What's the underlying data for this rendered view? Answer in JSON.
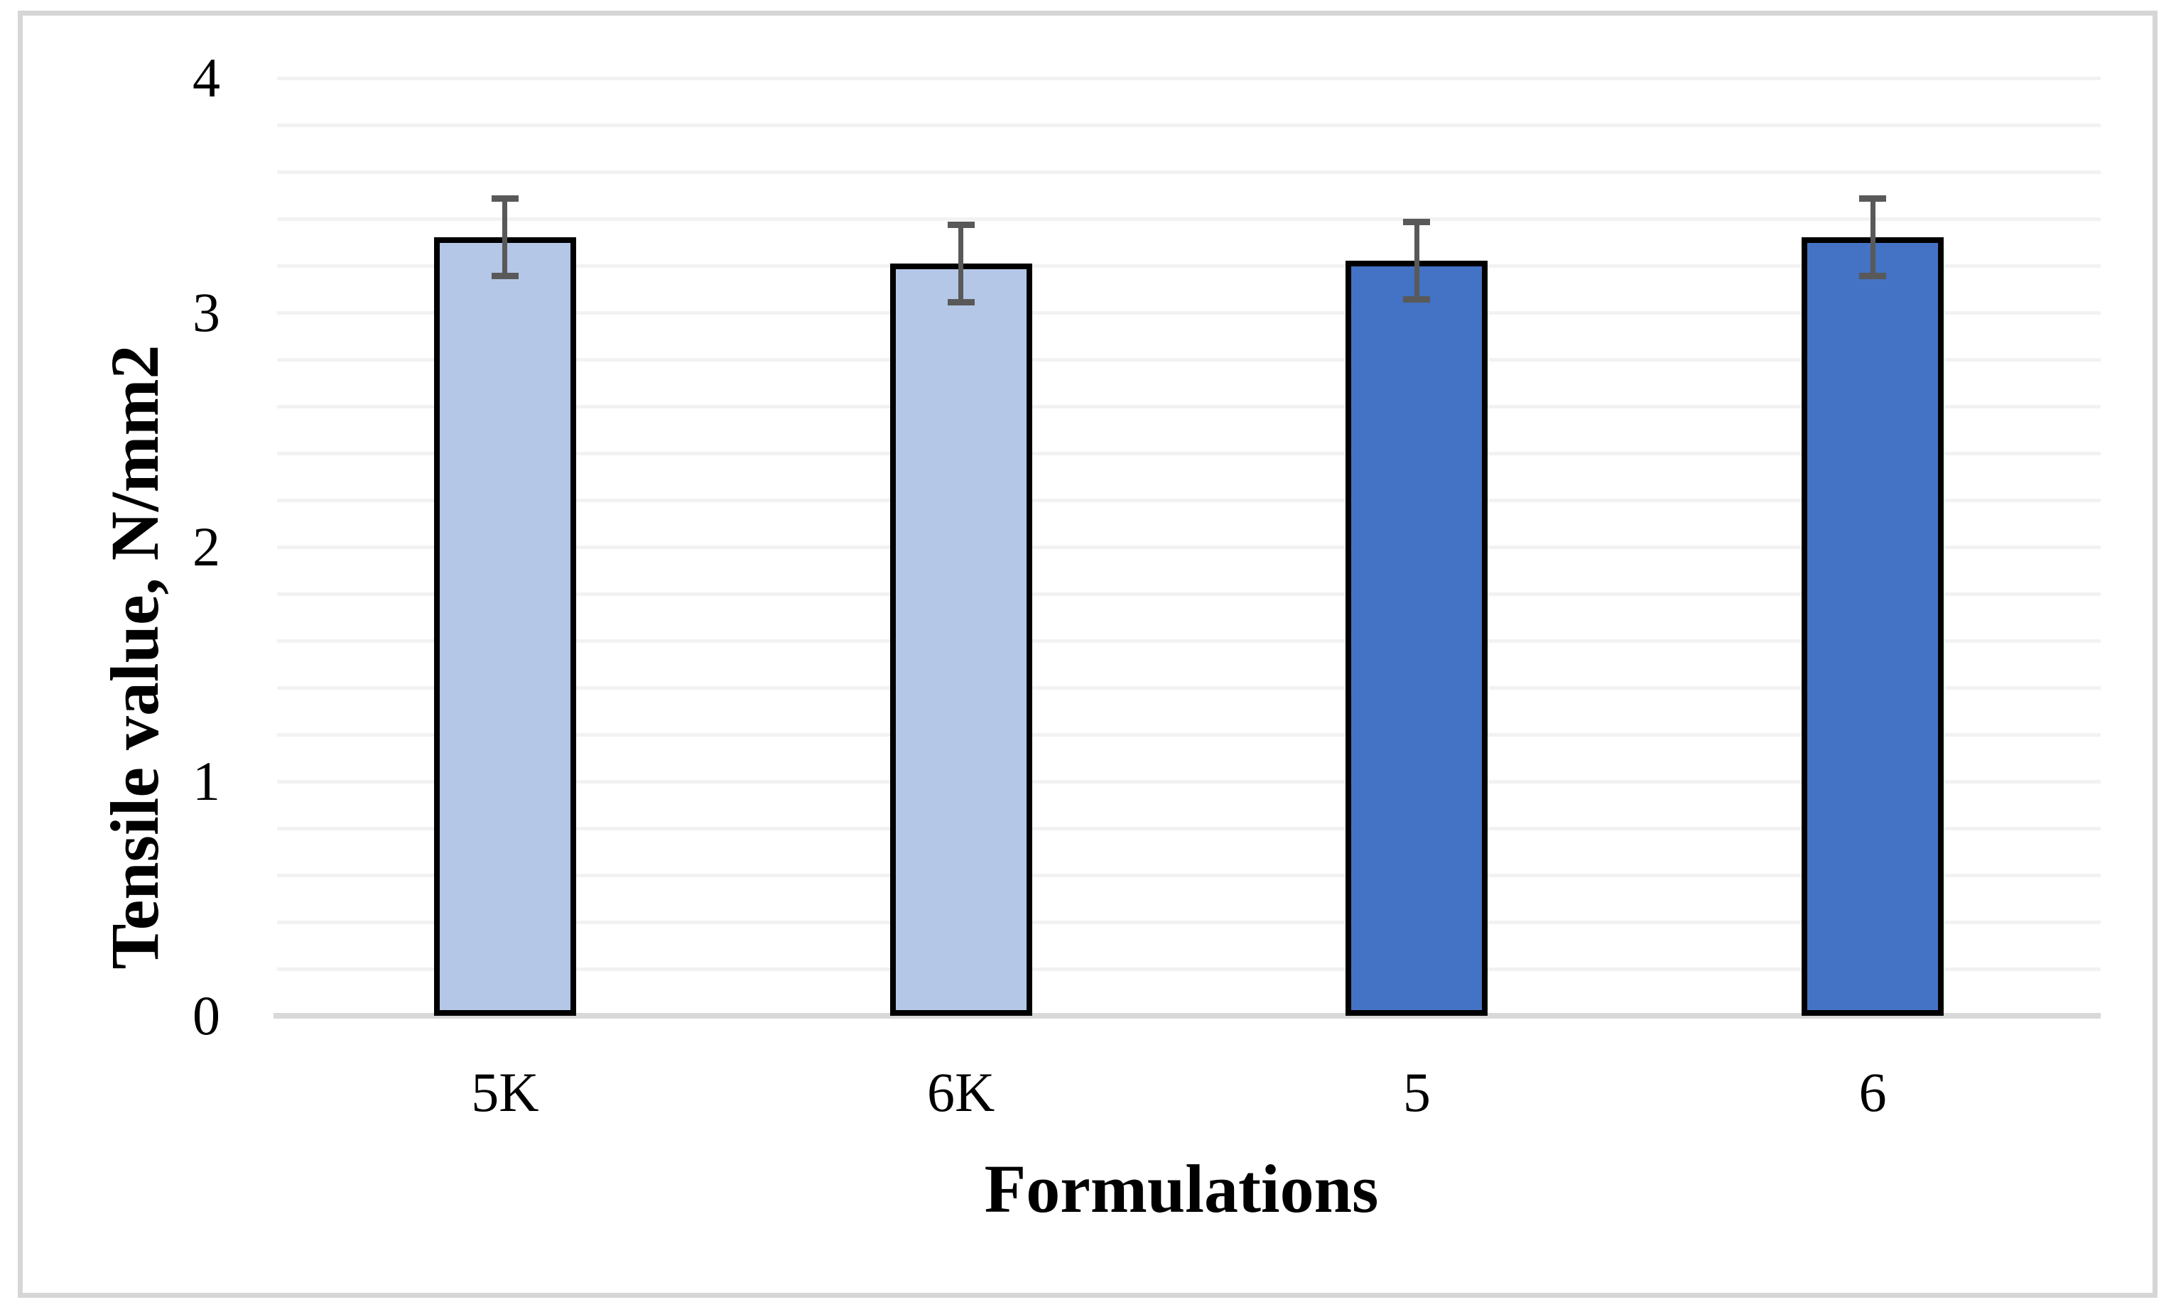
{
  "figure": {
    "background": "#FFFFFF",
    "border_color": "#D6D6D6"
  },
  "chart_data": {
    "type": "bar",
    "title": "",
    "xlabel": "Formulations",
    "ylabel": "Tensile value, N/mm2",
    "categories": [
      "5K",
      "6K",
      "5",
      "6"
    ],
    "series": [
      {
        "name": "Tensile value",
        "values": [
          3.32,
          3.21,
          3.22,
          3.32
        ],
        "error_bars": [
          0.165,
          0.165,
          0.165,
          0.165
        ]
      }
    ],
    "ylim": [
      0,
      4
    ],
    "ytick_values": [
      0,
      1,
      2,
      3,
      4
    ],
    "ytick_labels": [
      "0",
      "1",
      "2",
      "3",
      "4"
    ],
    "gridline_step": 0.2,
    "grid": "horizontal",
    "legend": "none",
    "colors": {
      "bar_fills": [
        "#B4C7E7",
        "#B4C7E7",
        "#4472C4",
        "#4472C4"
      ],
      "bar_border": "#000000",
      "error_bar": "#595959",
      "gridline": "#F2F2F2",
      "axis_line": "#D9D9D9",
      "text": "#000000"
    }
  }
}
